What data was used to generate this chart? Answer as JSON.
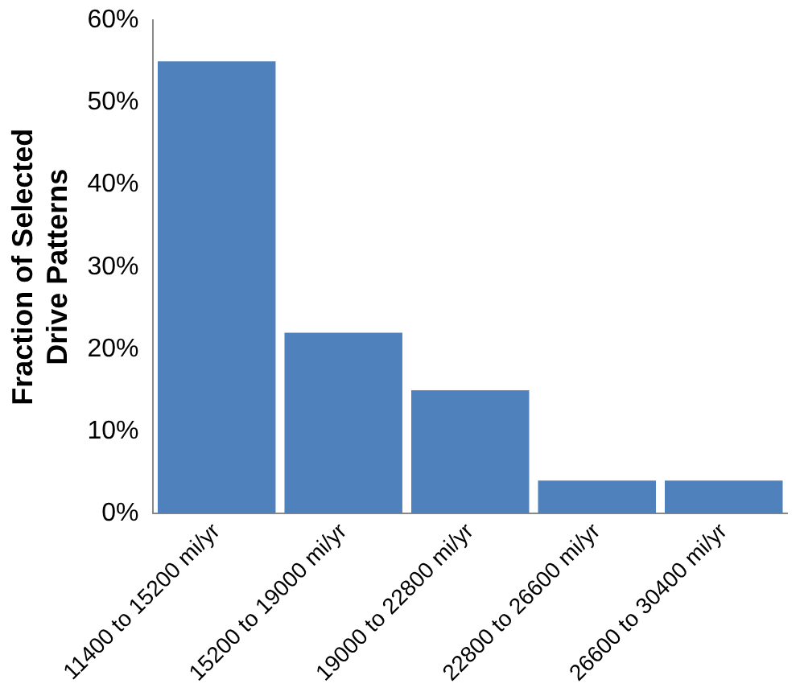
{
  "chart_data": {
    "type": "bar",
    "ylabel": "Fraction of Selected\nDrive Patterns",
    "categories": [
      "11400 to 15200 mi/yr",
      "15200 to 19000 mi/yr",
      "19000 to 22800 mi/yr",
      "22800 to 26600 mi/yr",
      "26600 to 30400 mi/yr"
    ],
    "values": [
      55,
      22,
      15,
      4,
      4
    ],
    "color": "#4f81bd",
    "ylim": [
      0,
      60
    ],
    "yticks": [
      {
        "value": 0,
        "label": "0%"
      },
      {
        "value": 10,
        "label": "10%"
      },
      {
        "value": 20,
        "label": "20%"
      },
      {
        "value": 30,
        "label": "30%"
      },
      {
        "value": 40,
        "label": "40%"
      },
      {
        "value": 50,
        "label": "50%"
      },
      {
        "value": 60,
        "label": "60%"
      }
    ],
    "grid": false,
    "legend": false
  }
}
